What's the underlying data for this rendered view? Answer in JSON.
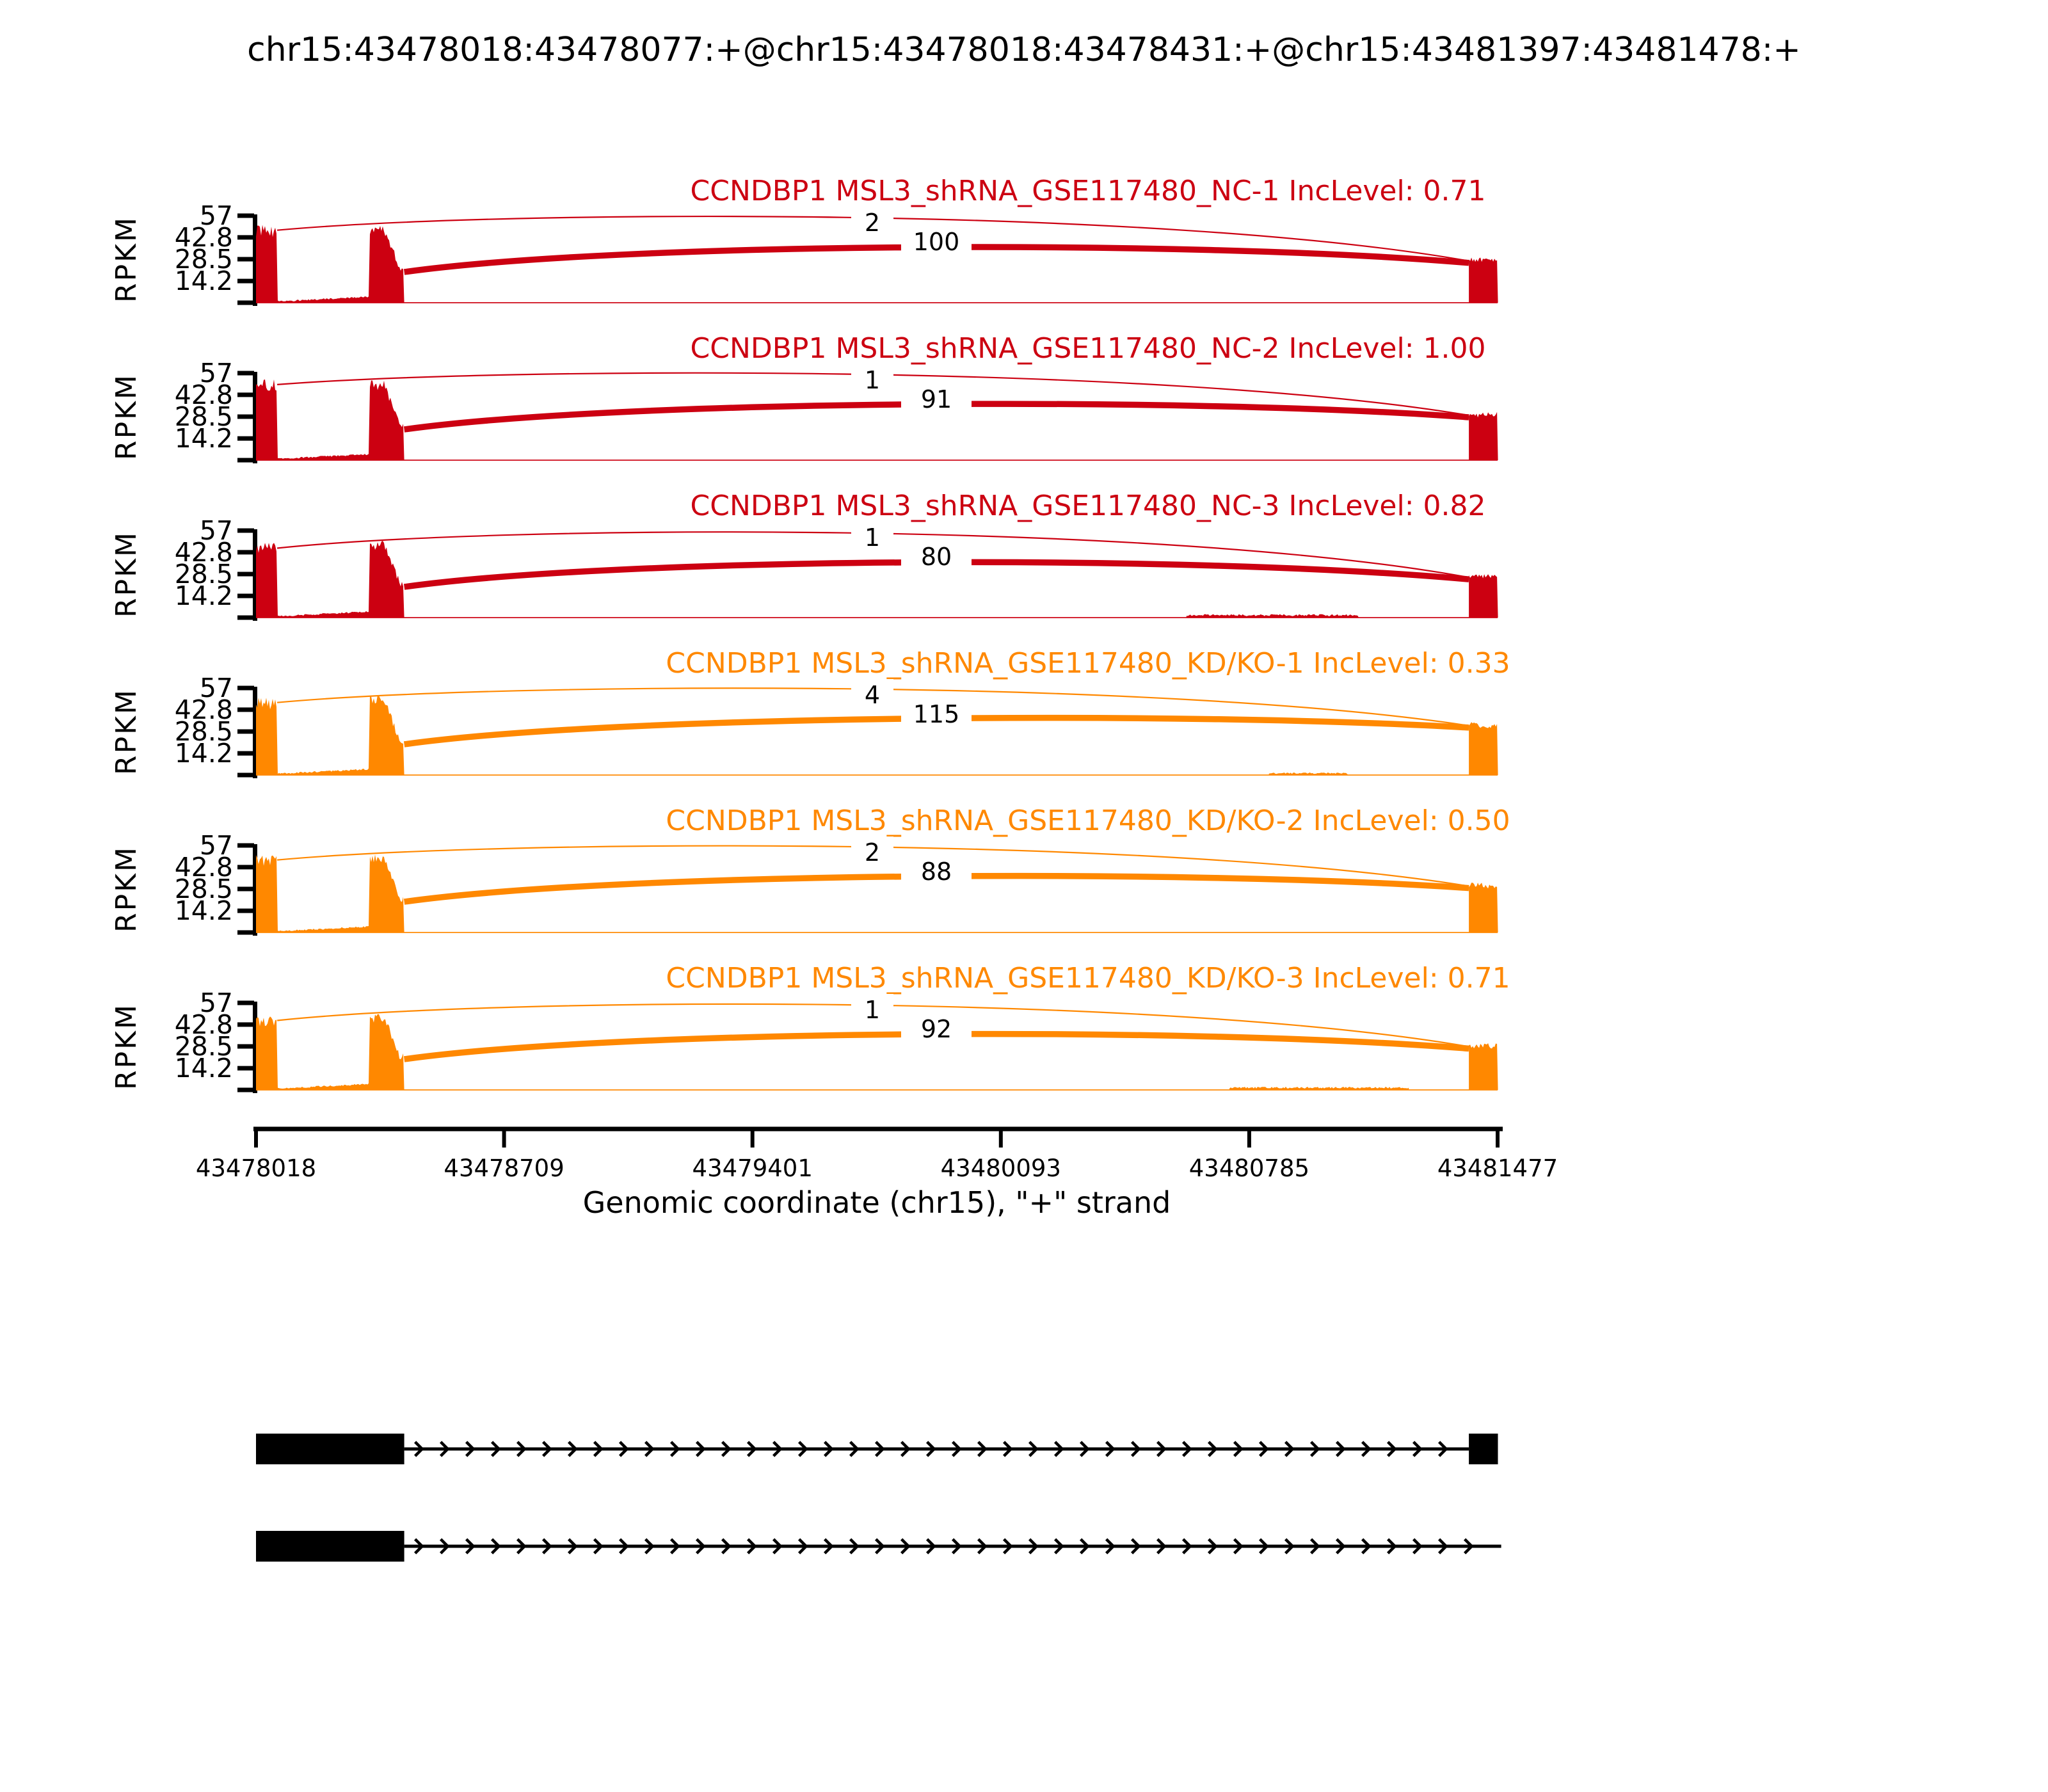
{
  "title": "chr15:43478018:43478077:+@chr15:43478018:43478431:+@chr15:43481397:43481478:+",
  "chart_data": {
    "type": "sashimi",
    "title": "chr15:43478018:43478077:+@chr15:43478018:43478431:+@chr15:43481397:43481478:+",
    "gene": "CCNDBP1",
    "chromosome": "chr15",
    "strand": "+",
    "xlabel": "Genomic coordinate (chr15), \"+\" strand",
    "ylabel": "RPKM",
    "x_range": [
      43478018,
      43481477
    ],
    "x_ticks": [
      43478018,
      43478709,
      43479401,
      43480093,
      43480785,
      43481477
    ],
    "x_tick_labels": [
      "43478018",
      "43478709",
      "43479401",
      "43480093",
      "43480785",
      "43481477"
    ],
    "y_ticks": [
      57,
      42.8,
      28.5,
      14.2
    ],
    "y_tick_labels": [
      "57",
      "42.8",
      "28.5",
      "14.2"
    ],
    "y_max": 57,
    "grid": false,
    "event_exons": {
      "short_first_exon": [
        43478018,
        43478077
      ],
      "long_first_exon": [
        43478018,
        43478431
      ],
      "downstream_exon": [
        43481397,
        43481478
      ]
    },
    "tracks": [
      {
        "label": "CCNDBP1 MSL3_shRNA_GSE117480_NC-1 IncLevel: 0.71",
        "sample": "MSL3_shRNA_GSE117480_NC-1",
        "inc_level": "0.71",
        "color": "#CC0011",
        "junctions": [
          {
            "from": 43478077,
            "to": 43481397,
            "count": 2
          },
          {
            "from": 43478431,
            "to": 43481397,
            "count": 100
          }
        ],
        "exon1_rpkm": 50,
        "exon1b_rpkm": 50,
        "exon3_rpkm": 29,
        "bump": null,
        "seed": 11
      },
      {
        "label": "CCNDBP1 MSL3_shRNA_GSE117480_NC-2 IncLevel: 1.00",
        "sample": "MSL3_shRNA_GSE117480_NC-2",
        "inc_level": "1.00",
        "color": "#CC0011",
        "junctions": [
          {
            "from": 43478077,
            "to": 43481397,
            "count": 1
          },
          {
            "from": 43478431,
            "to": 43481397,
            "count": 91
          }
        ],
        "exon1_rpkm": 52,
        "exon1b_rpkm": 52,
        "exon3_rpkm": 31,
        "bump": null,
        "seed": 22
      },
      {
        "label": "CCNDBP1 MSL3_shRNA_GSE117480_NC-3 IncLevel: 0.82",
        "sample": "MSL3_shRNA_GSE117480_NC-3",
        "inc_level": "0.82",
        "color": "#CC0011",
        "junctions": [
          {
            "from": 43478077,
            "to": 43481397,
            "count": 1
          },
          {
            "from": 43478431,
            "to": 43481397,
            "count": 80
          }
        ],
        "exon1_rpkm": 48,
        "exon1b_rpkm": 50,
        "exon3_rpkm": 28,
        "bump": [
          43480610,
          43481090,
          1.6
        ],
        "seed": 33
      },
      {
        "label": "CCNDBP1 MSL3_shRNA_GSE117480_KD/KO-1 IncLevel: 0.33",
        "sample": "MSL3_shRNA_GSE117480_KD/KO-1",
        "inc_level": "0.33",
        "color": "#FF8800",
        "junctions": [
          {
            "from": 43478077,
            "to": 43481397,
            "count": 4
          },
          {
            "from": 43478431,
            "to": 43481397,
            "count": 115
          }
        ],
        "exon1_rpkm": 50,
        "exon1b_rpkm": 52,
        "exon3_rpkm": 34,
        "bump": [
          43480840,
          43481060,
          1.2
        ],
        "seed": 44
      },
      {
        "label": "CCNDBP1 MSL3_shRNA_GSE117480_KD/KO-2 IncLevel: 0.50",
        "sample": "MSL3_shRNA_GSE117480_KD/KO-2",
        "inc_level": "0.50",
        "color": "#FF8800",
        "junctions": [
          {
            "from": 43478077,
            "to": 43481397,
            "count": 2
          },
          {
            "from": 43478431,
            "to": 43481397,
            "count": 88
          }
        ],
        "exon1_rpkm": 50,
        "exon1b_rpkm": 51,
        "exon3_rpkm": 32,
        "bump": null,
        "seed": 55
      },
      {
        "label": "CCNDBP1 MSL3_shRNA_GSE117480_KD/KO-3 IncLevel: 0.71",
        "sample": "MSL3_shRNA_GSE117480_KD/KO-3",
        "inc_level": "0.71",
        "color": "#FF8800",
        "junctions": [
          {
            "from": 43478077,
            "to": 43481397,
            "count": 1
          },
          {
            "from": 43478431,
            "to": 43481397,
            "count": 92
          }
        ],
        "exon1_rpkm": 48,
        "exon1b_rpkm": 50,
        "exon3_rpkm": 30,
        "bump": [
          43480730,
          43481230,
          1.5
        ],
        "seed": 66
      }
    ],
    "gene_model": {
      "color": "#000000",
      "arrow_direction": "right",
      "isoforms": [
        {
          "exons": [
            [
              43478018,
              43478431
            ],
            [
              43481397,
              43481478
            ]
          ],
          "line_end_bp": 43481397
        },
        {
          "exons": [
            [
              43478018,
              43478431
            ]
          ],
          "line_end_bp": 43481487
        }
      ]
    }
  }
}
